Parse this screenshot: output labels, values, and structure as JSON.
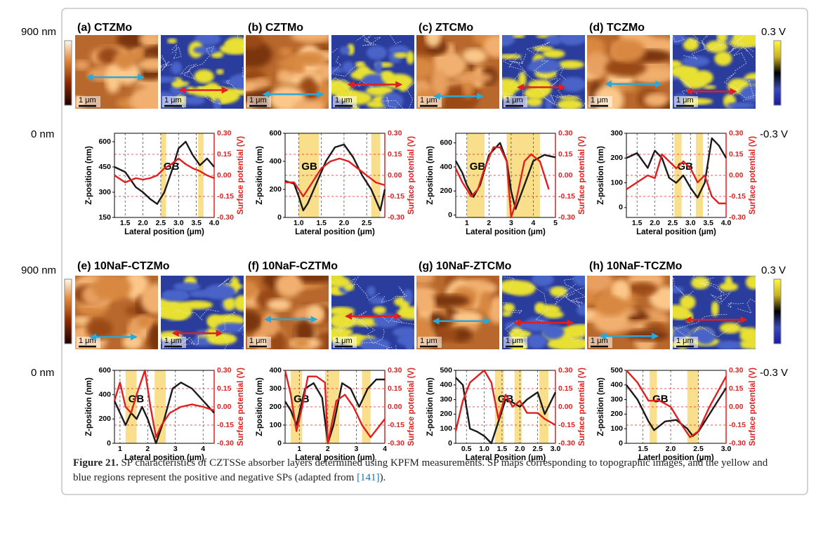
{
  "figure": {
    "colorbar_left": {
      "max": "900 nm",
      "min": "0 nm"
    },
    "colorbar_right": {
      "max": "0.3 V",
      "min": "-0.3 V"
    },
    "scale_bar": "1 μm",
    "y_label": "Z-position (nm)",
    "y2_label": "Surface potential (V)",
    "gb_label": "GB",
    "y2lim": [
      -0.3,
      0.3
    ],
    "y2ticks": [
      {
        "value": 0.3,
        "label": "0.30"
      },
      0.15,
      {
        "value": 0,
        "label": "0.00"
      },
      -0.15,
      {
        "value": -0.3,
        "label": "-0.30"
      }
    ],
    "panels": [
      {
        "title": "(a) CTZMo",
        "x_label": "Lateral position (μm)",
        "xlim": [
          1.2,
          4.0
        ],
        "xticks": [
          1.5,
          {
            "value": 2,
            "label": "2.0"
          },
          2.5,
          {
            "value": 3,
            "label": "3.0"
          },
          3.5,
          {
            "value": 4,
            "label": "4.0"
          }
        ],
        "ylim": [
          150,
          650
        ],
        "yticks": [
          150,
          300,
          450,
          600
        ],
        "gb_regions": [
          [
            2.5,
            2.65
          ],
          [
            3.55,
            3.7
          ]
        ],
        "black": {
          "x": [
            1.2,
            1.5,
            1.8,
            2.0,
            2.2,
            2.4,
            2.6,
            2.8,
            3.0,
            3.2,
            3.4,
            3.6,
            3.8,
            4.0
          ],
          "y": [
            450,
            420,
            330,
            300,
            260,
            230,
            300,
            420,
            560,
            600,
            520,
            460,
            500,
            450
          ]
        },
        "red": {
          "x": [
            1.2,
            1.5,
            1.8,
            2.0,
            2.2,
            2.4,
            2.6,
            2.8,
            3.0,
            3.2,
            3.4,
            3.6,
            3.8,
            4.0
          ],
          "y": [
            0.0,
            -0.05,
            -0.02,
            -0.03,
            -0.02,
            0.0,
            0.05,
            0.08,
            0.12,
            0.08,
            0.05,
            0.03,
            0.0,
            -0.02
          ]
        }
      },
      {
        "title": "(b) CZTMo",
        "x_label": "Lateral position (μm)",
        "xlim": [
          0.7,
          2.9
        ],
        "xticks": [
          {
            "value": 1,
            "label": "1.0"
          },
          1.5,
          {
            "value": 2,
            "label": "2.0"
          },
          2.5
        ],
        "ylim": [
          0,
          600
        ],
        "yticks": [
          0,
          200,
          400,
          600
        ],
        "gb_regions": [
          [
            1.0,
            1.45
          ],
          [
            2.6,
            2.8
          ]
        ],
        "black": {
          "x": [
            0.7,
            0.9,
            1.0,
            1.1,
            1.2,
            1.4,
            1.6,
            1.8,
            2.0,
            2.2,
            2.4,
            2.6,
            2.8,
            2.9
          ],
          "y": [
            260,
            240,
            150,
            50,
            100,
            250,
            400,
            500,
            520,
            430,
            300,
            200,
            50,
            200
          ]
        },
        "red": {
          "x": [
            0.7,
            0.9,
            1.1,
            1.3,
            1.5,
            1.7,
            1.9,
            2.1,
            2.3,
            2.5,
            2.7,
            2.9
          ],
          "y": [
            -0.05,
            -0.05,
            -0.15,
            -0.05,
            0.05,
            0.1,
            0.12,
            0.1,
            0.05,
            0.0,
            -0.05,
            -0.07
          ]
        }
      },
      {
        "title": "(c) ZTCMo",
        "x_label": "Lateral position (μm)",
        "xlim": [
          0.5,
          5
        ],
        "xticks": [
          1,
          2,
          3,
          4,
          5
        ],
        "ylim": [
          -20,
          680
        ],
        "yticks": [
          0,
          200,
          400,
          600
        ],
        "gb_regions": [
          [
            1,
            1.8
          ],
          [
            2.8,
            4.3
          ]
        ],
        "black": {
          "x": [
            0.5,
            0.8,
            1.0,
            1.3,
            1.6,
            2.0,
            2.5,
            2.8,
            3.0,
            3.2,
            3.5,
            4.0,
            4.5,
            5.0
          ],
          "y": [
            450,
            350,
            250,
            150,
            250,
            500,
            600,
            450,
            200,
            50,
            200,
            450,
            500,
            480
          ]
        },
        "red": {
          "x": [
            0.5,
            0.8,
            1.2,
            1.5,
            1.8,
            2.2,
            2.5,
            2.8,
            3.0,
            3.2,
            3.6,
            3.9,
            4.3,
            4.7
          ],
          "y": [
            0.05,
            -0.05,
            -0.15,
            -0.1,
            0.05,
            0.2,
            0.2,
            0.1,
            -0.3,
            -0.2,
            0.1,
            0.15,
            0.1,
            -0.1
          ]
        }
      },
      {
        "title": "(d) TCZMo",
        "x_label": "Lateral position (μm)",
        "xlim": [
          1.2,
          4.0
        ],
        "xticks": [
          1.5,
          {
            "value": 2,
            "label": "2.0"
          },
          2.5,
          {
            "value": 3,
            "label": "3.0"
          },
          3.5,
          {
            "value": 4,
            "label": "4.0"
          }
        ],
        "ylim": [
          -40,
          300
        ],
        "yticks": [
          0,
          100,
          200,
          300
        ],
        "gb_regions": [
          [
            2.55,
            2.75
          ],
          [
            3.15,
            3.35
          ]
        ],
        "black": {
          "x": [
            1.2,
            1.5,
            1.8,
            2.0,
            2.2,
            2.4,
            2.6,
            2.8,
            3.0,
            3.2,
            3.4,
            3.6,
            3.8,
            4.0
          ],
          "y": [
            200,
            220,
            160,
            230,
            200,
            120,
            100,
            130,
            80,
            40,
            100,
            280,
            250,
            200
          ]
        },
        "red": {
          "x": [
            1.2,
            1.5,
            1.8,
            2.0,
            2.2,
            2.4,
            2.6,
            2.8,
            3.0,
            3.2,
            3.4,
            3.6,
            3.8,
            4.0
          ],
          "y": [
            -0.1,
            -0.05,
            0.0,
            -0.02,
            0.15,
            0.1,
            0.05,
            0.1,
            0.05,
            -0.05,
            0.0,
            -0.15,
            -0.2,
            -0.2
          ]
        }
      },
      {
        "title": "(e) 10NaF-CTZMo",
        "x_label": "Lateral position (μm)",
        "xlim": [
          0.8,
          4.4
        ],
        "xticks": [
          1,
          2,
          3,
          4
        ],
        "ylim": [
          0,
          600
        ],
        "yticks": [
          0,
          200,
          400,
          600
        ],
        "gb_regions": [
          [
            1.2,
            1.6
          ],
          [
            2.25,
            2.65
          ]
        ],
        "black": {
          "x": [
            0.8,
            1.0,
            1.2,
            1.4,
            1.6,
            1.8,
            2.0,
            2.3,
            2.6,
            2.9,
            3.2,
            3.6,
            4.0,
            4.4
          ],
          "y": [
            350,
            250,
            150,
            250,
            200,
            300,
            200,
            0,
            200,
            450,
            500,
            450,
            350,
            250
          ]
        },
        "red": {
          "x": [
            0.8,
            1.0,
            1.2,
            1.4,
            1.6,
            1.9,
            2.1,
            2.3,
            2.5,
            2.8,
            3.2,
            3.6,
            4.0,
            4.4
          ],
          "y": [
            0.05,
            0.2,
            0.0,
            -0.05,
            0.1,
            0.3,
            0.0,
            -0.25,
            -0.15,
            -0.05,
            0.0,
            0.02,
            0.0,
            -0.03
          ]
        }
      },
      {
        "title": "(f) 10NaF-CZTMo",
        "x_label": "Lateral position (μm)",
        "xlim": [
          0.5,
          4
        ],
        "xticks": [
          1,
          2,
          3,
          4
        ],
        "ylim": [
          0,
          400
        ],
        "yticks": [
          0,
          100,
          200,
          300,
          400
        ],
        "gb_regions": [
          [
            0.7,
            1.1
          ],
          [
            1.9,
            2.4
          ],
          [
            3.2,
            3.5
          ]
        ],
        "black": {
          "x": [
            0.5,
            0.7,
            0.9,
            1.2,
            1.5,
            1.8,
            2.0,
            2.2,
            2.5,
            2.8,
            3.1,
            3.4,
            3.7,
            4.0
          ],
          "y": [
            230,
            180,
            100,
            300,
            330,
            250,
            0,
            100,
            330,
            300,
            200,
            300,
            350,
            350
          ]
        },
        "red": {
          "x": [
            0.5,
            0.7,
            0.9,
            1.1,
            1.3,
            1.6,
            1.9,
            2.0,
            2.3,
            2.6,
            2.9,
            3.2,
            3.5,
            4.0
          ],
          "y": [
            0.3,
            0.1,
            -0.2,
            0.0,
            0.25,
            0.25,
            0.2,
            -0.3,
            0.05,
            0.1,
            0.0,
            -0.15,
            -0.25,
            -0.1
          ]
        }
      },
      {
        "title": "(g) 10NaF-ZTCMo",
        "x_label": "Lateral Position (μm)",
        "xlim": [
          0.2,
          3.0
        ],
        "xticks": [
          0.5,
          {
            "value": 1,
            "label": "1.0"
          },
          1.5,
          {
            "value": 2,
            "label": "2.0"
          },
          2.5,
          {
            "value": 3,
            "label": "3.0"
          }
        ],
        "ylim": [
          0,
          500
        ],
        "yticks": [
          0,
          100,
          200,
          300,
          400,
          500
        ],
        "gb_regions": [
          [
            1.3,
            1.55
          ],
          [
            1.85,
            2.05
          ],
          [
            2.55,
            2.8
          ]
        ],
        "black": {
          "x": [
            0.2,
            0.4,
            0.6,
            0.8,
            1.0,
            1.2,
            1.4,
            1.6,
            1.8,
            2.0,
            2.2,
            2.5,
            2.7,
            3.0
          ],
          "y": [
            450,
            400,
            100,
            80,
            50,
            0,
            150,
            300,
            280,
            250,
            300,
            350,
            200,
            350
          ]
        },
        "red": {
          "x": [
            0.2,
            0.4,
            0.6,
            0.8,
            1.0,
            1.2,
            1.4,
            1.6,
            1.8,
            2.0,
            2.2,
            2.5,
            2.7,
            3.0
          ],
          "y": [
            -0.2,
            0.05,
            0.2,
            0.25,
            0.3,
            0.2,
            -0.1,
            0.1,
            0.0,
            0.05,
            -0.05,
            -0.05,
            -0.1,
            -0.15
          ]
        }
      },
      {
        "title": "(h) 10NaF-TCZMo",
        "x_label": "Laterl position (μm)",
        "xlim": [
          1.2,
          3.0
        ],
        "xticks": [
          1.5,
          {
            "value": 2,
            "label": "2.0"
          },
          2.5,
          {
            "value": 3,
            "label": "3.0"
          }
        ],
        "ylim": [
          0,
          500
        ],
        "yticks": [
          0,
          100,
          200,
          300,
          400,
          500
        ],
        "gb_regions": [
          [
            1.62,
            1.75
          ],
          [
            2.3,
            2.5
          ]
        ],
        "black": {
          "x": [
            1.2,
            1.4,
            1.6,
            1.7,
            1.9,
            2.1,
            2.3,
            2.4,
            2.5,
            2.7,
            3.0
          ],
          "y": [
            400,
            300,
            150,
            90,
            150,
            160,
            100,
            50,
            80,
            200,
            380
          ]
        },
        "red": {
          "x": [
            1.2,
            1.4,
            1.6,
            1.8,
            2.0,
            2.2,
            2.35,
            2.5,
            2.7,
            3.0
          ],
          "y": [
            0.3,
            0.2,
            0.05,
            0.05,
            0.0,
            -0.15,
            -0.25,
            -0.2,
            0.0,
            0.25
          ]
        }
      }
    ]
  },
  "caption": {
    "label": "Figure 21.",
    "text": " SP characteristics of CZTSSe absorber layers determined using KPFM measurements. SP maps corresponding to topographic images, and the yellow and blue regions represent the positive and negative SPs (adapted from ",
    "ref": "[141]",
    "end": ")."
  }
}
